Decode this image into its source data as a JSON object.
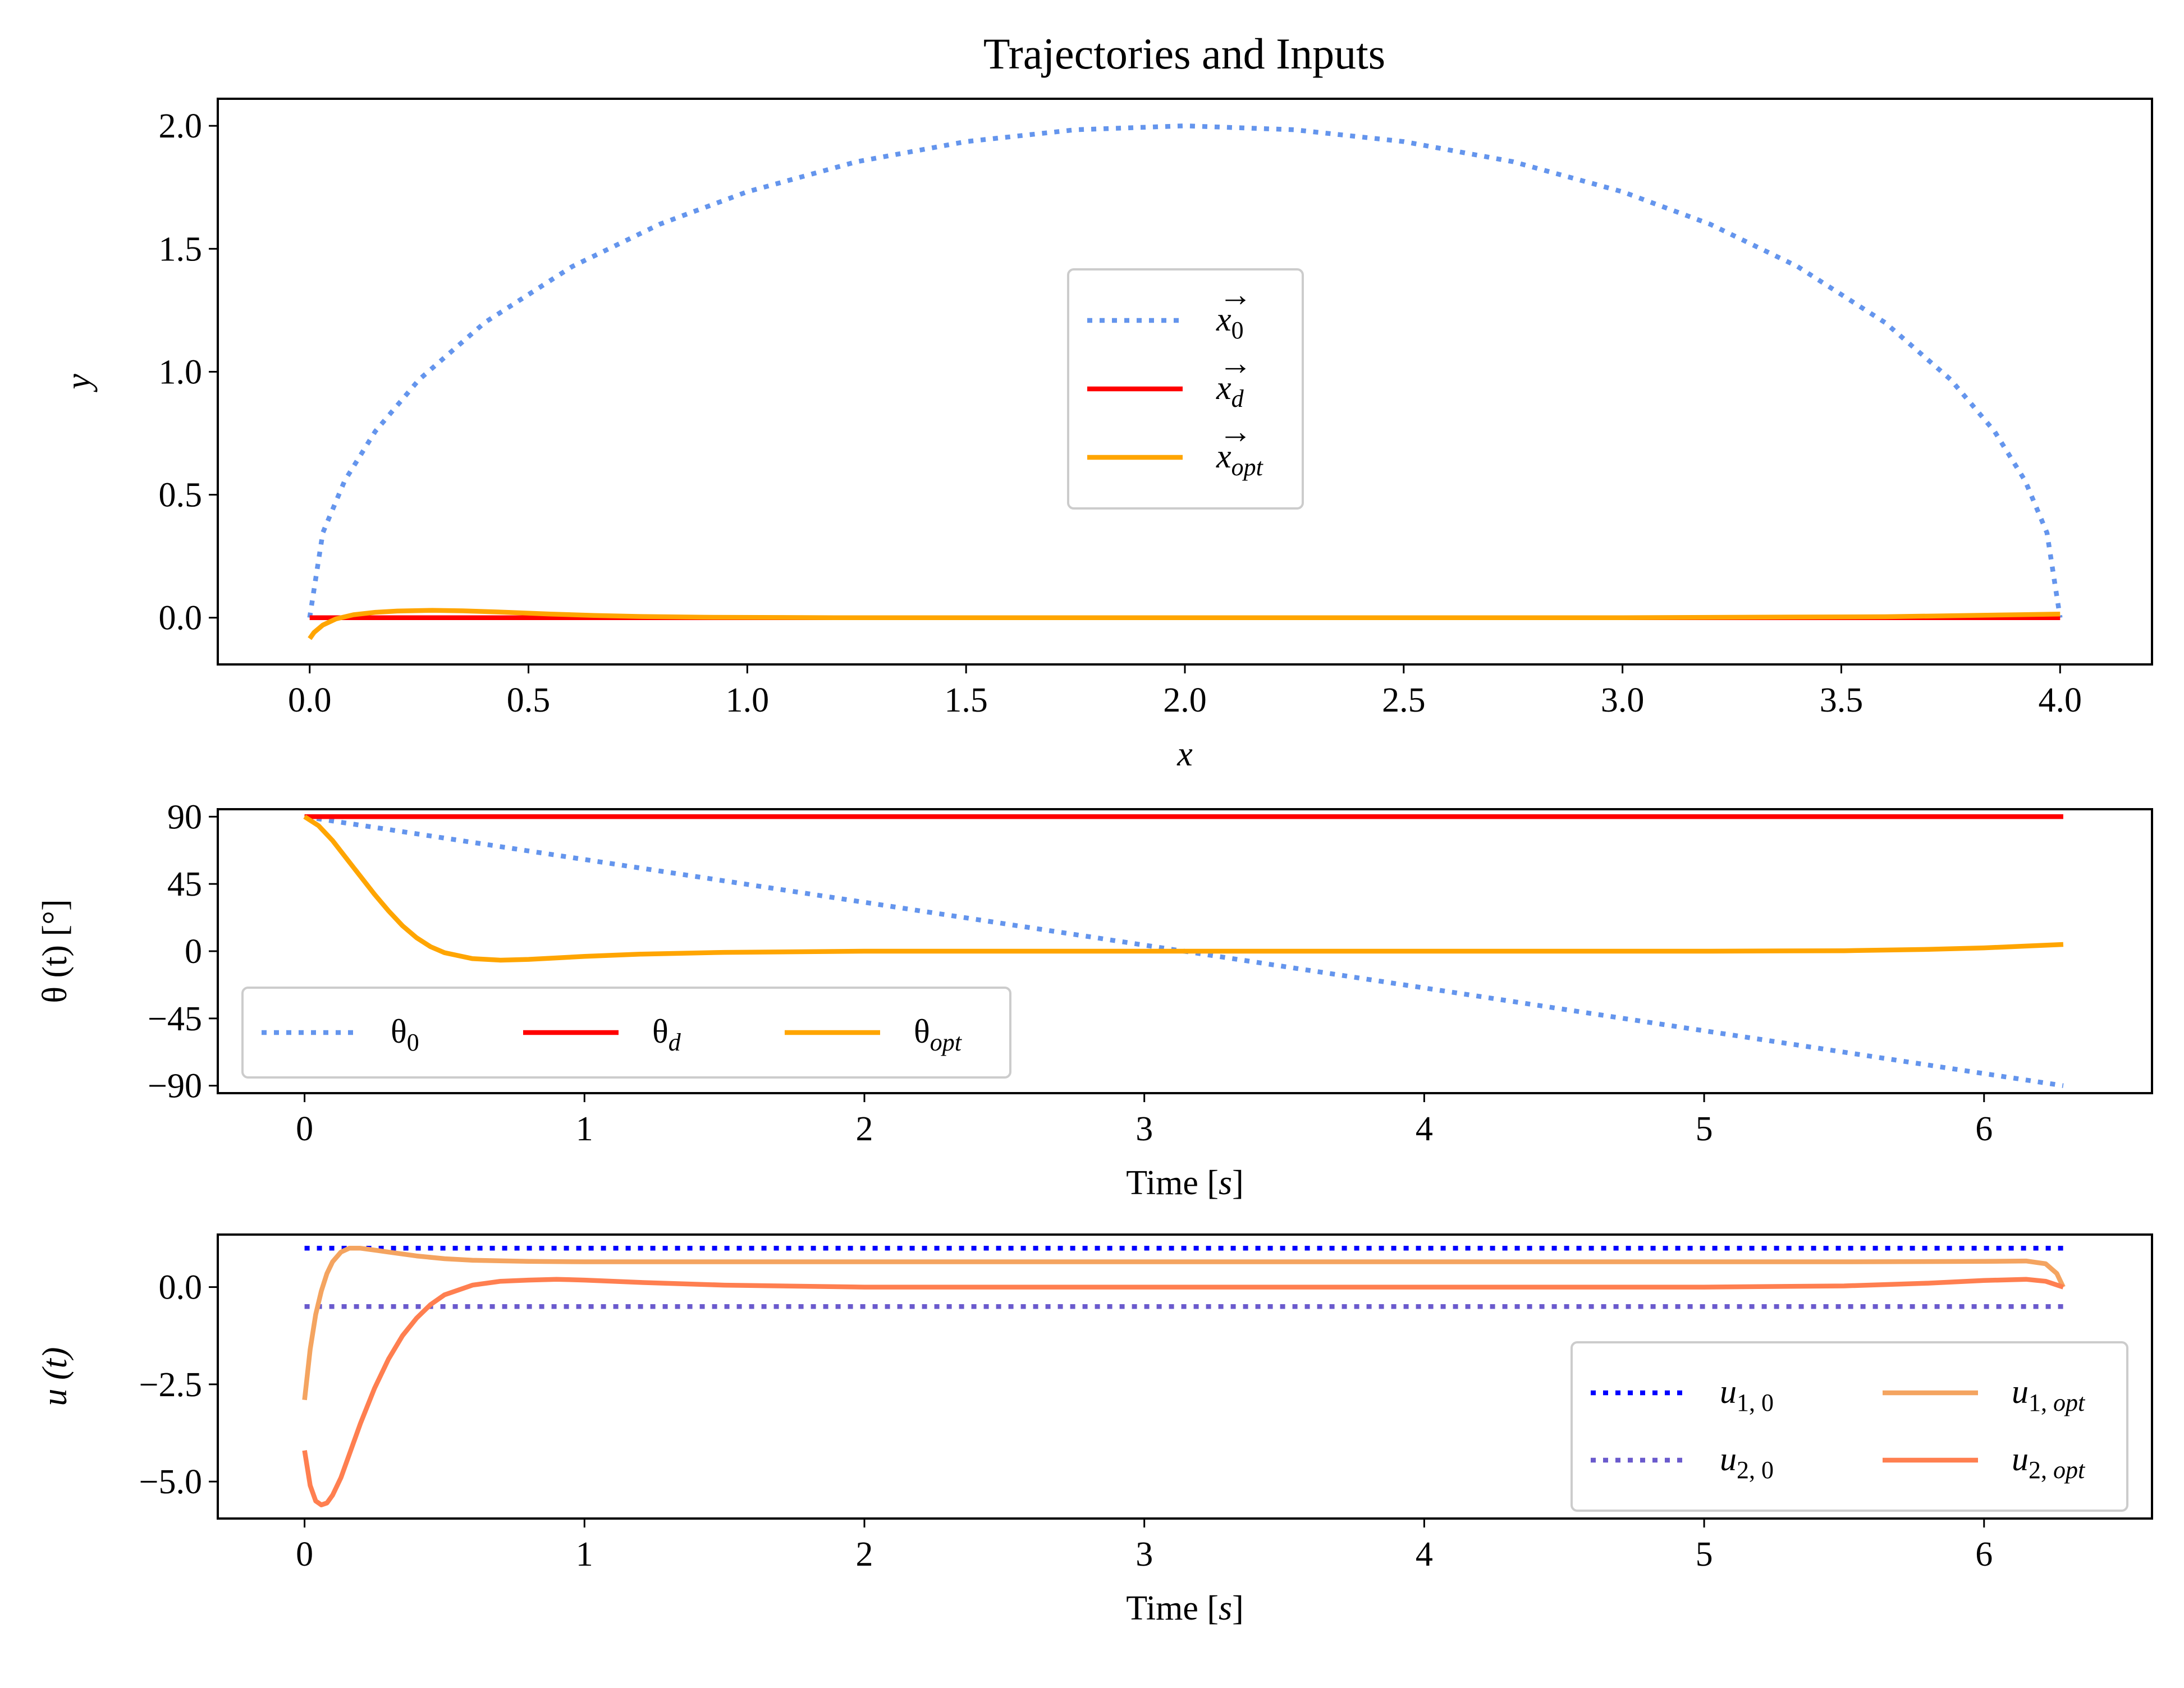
{
  "chart_data": [
    {
      "type": "line",
      "title": "Trajectories and Inputs",
      "xlabel": "x",
      "ylabel": "y",
      "xlim": [
        -0.21,
        4.21
      ],
      "ylim": [
        -0.19,
        2.11
      ],
      "xticks": [
        "0.0",
        "0.5",
        "1.0",
        "1.5",
        "2.0",
        "2.5",
        "3.0",
        "3.5",
        "4.0"
      ],
      "xtick_values": [
        0,
        0.5,
        1,
        1.5,
        2,
        2.5,
        3,
        3.5,
        4
      ],
      "yticks": [
        "0.0",
        "0.5",
        "1.0",
        "1.5",
        "2.0"
      ],
      "ytick_values": [
        0,
        0.5,
        1,
        1.5,
        2
      ],
      "grid": false,
      "legend_placement": "center",
      "series": [
        {
          "name": "x⃗₀",
          "legend": {
            "base": "x",
            "sub": "0"
          },
          "color": "#6495ED",
          "style": "dotted",
          "x": [
            0.0,
            0.03,
            0.08,
            0.15,
            0.25,
            0.4,
            0.6,
            0.8,
            1.0,
            1.25,
            1.5,
            1.75,
            2.0,
            2.25,
            2.5,
            2.75,
            3.0,
            3.2,
            3.4,
            3.6,
            3.75,
            3.85,
            3.92,
            3.97,
            4.0
          ],
          "y": [
            0.0,
            0.345,
            0.557,
            0.758,
            0.968,
            1.2,
            1.428,
            1.6,
            1.732,
            1.854,
            1.936,
            1.984,
            2.0,
            1.984,
            1.936,
            1.854,
            1.732,
            1.6,
            1.428,
            1.2,
            0.968,
            0.758,
            0.557,
            0.345,
            0.0
          ]
        },
        {
          "name": "x⃗_d",
          "legend": {
            "base": "x",
            "sub": "d"
          },
          "color": "#FF0000",
          "style": "solid",
          "x": [
            0.0,
            4.0
          ],
          "y": [
            0.0,
            0.0
          ]
        },
        {
          "name": "x⃗_opt",
          "legend": {
            "base": "x",
            "sub": "opt"
          },
          "color": "#FFA500",
          "style": "solid",
          "x": [
            0.0,
            0.01,
            0.03,
            0.06,
            0.1,
            0.15,
            0.2,
            0.28,
            0.35,
            0.45,
            0.55,
            0.65,
            0.75,
            0.9,
            1.2,
            2.0,
            3.0,
            3.6,
            3.9,
            4.0
          ],
          "y": [
            -0.085,
            -0.06,
            -0.03,
            -0.005,
            0.012,
            0.022,
            0.027,
            0.03,
            0.028,
            0.022,
            0.015,
            0.009,
            0.005,
            0.002,
            0.0,
            0.0,
            0.0,
            0.004,
            0.012,
            0.015
          ]
        }
      ]
    },
    {
      "type": "line",
      "title": "",
      "xlabel": "Time [s]",
      "ylabel": "θ (t) [°]",
      "xlim": [
        -0.31,
        6.6
      ],
      "ylim": [
        -95,
        95
      ],
      "xticks": [
        "0",
        "1",
        "2",
        "3",
        "4",
        "5",
        "6"
      ],
      "xtick_values": [
        0,
        1,
        2,
        3,
        4,
        5,
        6
      ],
      "yticks": [
        "90",
        "45",
        "0",
        "−45",
        "−90"
      ],
      "ytick_values": [
        90,
        45,
        0,
        -45,
        -90
      ],
      "grid": false,
      "legend_placement": "lower left",
      "series": [
        {
          "name": "θ₀",
          "legend": {
            "base": "θ",
            "sub": "0"
          },
          "color": "#6495ED",
          "style": "dotted",
          "x": [
            0.0,
            6.283
          ],
          "y": [
            90,
            -90
          ]
        },
        {
          "name": "θ_d",
          "legend": {
            "base": "θ",
            "sub": "d"
          },
          "color": "#FF0000",
          "style": "solid",
          "x": [
            0.0,
            6.283
          ],
          "y": [
            90,
            90
          ]
        },
        {
          "name": "θ_opt",
          "legend": {
            "base": "θ",
            "sub": "opt"
          },
          "color": "#FFA500",
          "style": "solid",
          "x": [
            0.0,
            0.05,
            0.1,
            0.15,
            0.2,
            0.25,
            0.3,
            0.35,
            0.4,
            0.45,
            0.5,
            0.6,
            0.7,
            0.8,
            0.9,
            1.0,
            1.2,
            1.5,
            2.0,
            3.0,
            4.0,
            5.0,
            5.5,
            5.8,
            6.0,
            6.15,
            6.283
          ],
          "y": [
            90,
            84,
            74,
            62,
            50,
            38,
            27,
            17,
            9,
            3,
            -1,
            -5,
            -6,
            -5.5,
            -4.5,
            -3.5,
            -2,
            -0.8,
            0,
            0,
            0,
            0,
            0.3,
            1.2,
            2.2,
            3.4,
            4.5
          ]
        }
      ]
    },
    {
      "type": "line",
      "title": "",
      "xlabel": "Time [s]",
      "ylabel": "u (t)",
      "xlim": [
        -0.31,
        6.6
      ],
      "ylim": [
        -5.95,
        1.35
      ],
      "xticks": [
        "0",
        "1",
        "2",
        "3",
        "4",
        "5",
        "6"
      ],
      "xtick_values": [
        0,
        1,
        2,
        3,
        4,
        5,
        6
      ],
      "yticks": [
        "0.0",
        "−2.5",
        "−5.0"
      ],
      "ytick_values": [
        0,
        -2.5,
        -5
      ],
      "grid": false,
      "legend_placement": "lower right",
      "series": [
        {
          "name": "u₁,₀",
          "legend": {
            "base": "u",
            "sub": "1, 0"
          },
          "color": "#0000FF",
          "style": "dotted",
          "x": [
            0.0,
            6.283
          ],
          "y": [
            1.0,
            1.0
          ]
        },
        {
          "name": "u₂,₀",
          "legend": {
            "base": "u",
            "sub": "2, 0"
          },
          "color": "#6A5ACD",
          "style": "dotted",
          "x": [
            0.0,
            6.283
          ],
          "y": [
            -0.5,
            -0.5
          ]
        },
        {
          "name": "u₁,opt",
          "legend": {
            "base": "u",
            "sub": "1, opt"
          },
          "color": "#F4A460",
          "style": "solid",
          "x": [
            0.0,
            0.02,
            0.04,
            0.06,
            0.08,
            0.1,
            0.13,
            0.16,
            0.2,
            0.25,
            0.3,
            0.4,
            0.5,
            0.6,
            0.8,
            1.0,
            2.0,
            4.0,
            5.5,
            6.0,
            6.15,
            6.22,
            6.26,
            6.283
          ],
          "y": [
            -2.9,
            -1.6,
            -0.7,
            -0.1,
            0.35,
            0.65,
            0.9,
            1.0,
            1.0,
            0.95,
            0.9,
            0.8,
            0.73,
            0.69,
            0.66,
            0.65,
            0.65,
            0.65,
            0.65,
            0.66,
            0.67,
            0.6,
            0.35,
            0.0
          ]
        },
        {
          "name": "u₂,opt",
          "legend": {
            "base": "u",
            "sub": "2, opt"
          },
          "color": "#FF7F50",
          "style": "solid",
          "x": [
            0.0,
            0.02,
            0.04,
            0.06,
            0.08,
            0.1,
            0.13,
            0.16,
            0.2,
            0.25,
            0.3,
            0.35,
            0.4,
            0.45,
            0.5,
            0.6,
            0.7,
            0.8,
            0.9,
            1.0,
            1.2,
            1.5,
            2.0,
            3.0,
            4.0,
            5.0,
            5.5,
            5.8,
            6.0,
            6.15,
            6.22,
            6.283
          ],
          "y": [
            -4.2,
            -5.1,
            -5.5,
            -5.6,
            -5.55,
            -5.35,
            -4.9,
            -4.3,
            -3.5,
            -2.6,
            -1.85,
            -1.25,
            -0.8,
            -0.45,
            -0.2,
            0.05,
            0.15,
            0.18,
            0.2,
            0.18,
            0.12,
            0.05,
            0.0,
            0.0,
            0.0,
            0.0,
            0.03,
            0.1,
            0.17,
            0.2,
            0.15,
            0.0
          ]
        }
      ]
    }
  ]
}
